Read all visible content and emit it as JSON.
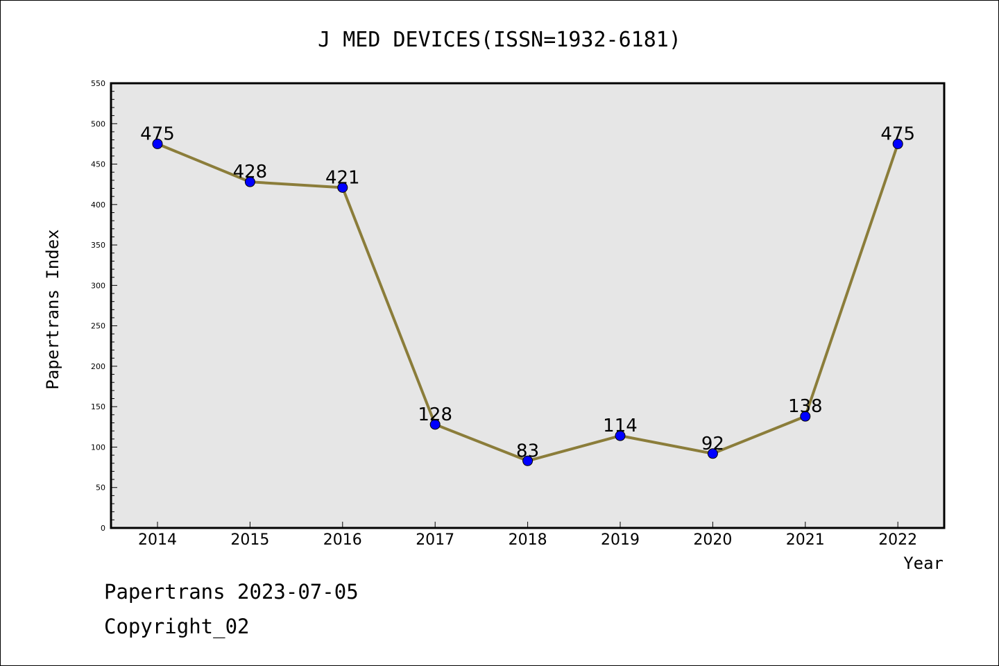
{
  "chart_data": {
    "type": "line",
    "title": "J MED DEVICES(ISSN=1932-6181)",
    "xlabel": "Year",
    "ylabel": "Papertrans Index",
    "categories": [
      "2014",
      "2015",
      "2016",
      "2017",
      "2018",
      "2019",
      "2020",
      "2021",
      "2022"
    ],
    "series": [
      {
        "values": [
          475,
          428,
          421,
          128,
          83,
          114,
          92,
          138,
          475
        ]
      }
    ],
    "data_labels": [
      "475",
      "428",
      "421",
      "128",
      "83",
      "114",
      "92",
      "138",
      "475"
    ],
    "ylim": [
      0,
      550
    ],
    "yticks": [
      0,
      50,
      100,
      150,
      200,
      250,
      300,
      350,
      400,
      450,
      500,
      550
    ],
    "grid": false,
    "legend": "none",
    "colors": {
      "line": "#8b7d3a",
      "marker": "#0000ff",
      "plot_background": "#e6e6e6"
    }
  },
  "footer": {
    "line1": "Papertrans 2023-07-05",
    "line2": "Copyright_02"
  }
}
